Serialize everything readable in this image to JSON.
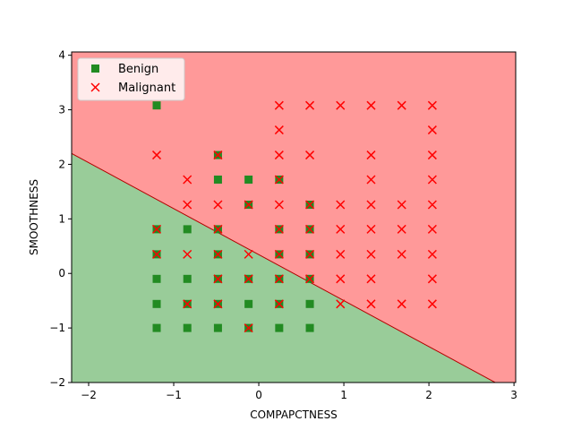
{
  "chart_data": {
    "type": "scatter",
    "xlabel": "COMPAPCTNESS",
    "ylabel": "SMOOTHNESS",
    "xlim": [
      -2.2,
      3.02
    ],
    "ylim": [
      -2,
      4.06
    ],
    "xticks": [
      -2,
      -1,
      0,
      1,
      2,
      3
    ],
    "yticks": [
      -2,
      -1,
      0,
      1,
      2,
      3,
      4
    ],
    "xtick_labels": [
      "−2",
      "−1",
      "0",
      "1",
      "2",
      "3"
    ],
    "ytick_labels": [
      "−2",
      "−1",
      "0",
      "1",
      "2",
      "3",
      "4"
    ],
    "decision_boundary": {
      "x": [
        -2.2,
        2.78
      ],
      "y": [
        2.2,
        -2.0
      ]
    },
    "regions": {
      "upper": "#ff9999",
      "lower": "#99cc99"
    },
    "boundary_color": "#b30000",
    "legend": {
      "position": "top-left",
      "entries": [
        "Benign",
        "Malignant"
      ]
    },
    "series": [
      {
        "name": "Benign",
        "marker": "square",
        "color": "#228b22",
        "points": [
          [
            -1.2,
            3.08
          ],
          [
            -1.2,
            0.81
          ],
          [
            -0.84,
            0.81
          ],
          [
            -1.2,
            0.35
          ],
          [
            -0.48,
            0.35
          ],
          [
            0.24,
            0.35
          ],
          [
            0.6,
            0.35
          ],
          [
            -1.2,
            -0.1
          ],
          [
            -0.84,
            -0.1
          ],
          [
            -0.48,
            -0.1
          ],
          [
            -0.12,
            -0.1
          ],
          [
            0.24,
            -0.1
          ],
          [
            0.6,
            -0.1
          ],
          [
            -1.2,
            -0.56
          ],
          [
            -0.84,
            -0.56
          ],
          [
            -0.48,
            -0.56
          ],
          [
            -0.12,
            -0.56
          ],
          [
            0.24,
            -0.56
          ],
          [
            0.6,
            -0.56
          ],
          [
            -1.2,
            -1.0
          ],
          [
            -0.84,
            -1.0
          ],
          [
            -0.48,
            -1.0
          ],
          [
            -0.12,
            -1.0
          ],
          [
            0.24,
            -1.0
          ],
          [
            0.6,
            -1.0
          ],
          [
            -0.48,
            2.17
          ],
          [
            -0.48,
            1.72
          ],
          [
            -0.12,
            1.72
          ],
          [
            0.24,
            1.72
          ],
          [
            -0.12,
            1.26
          ],
          [
            0.6,
            1.26
          ],
          [
            -0.48,
            0.81
          ],
          [
            0.24,
            0.81
          ],
          [
            0.6,
            0.81
          ]
        ]
      },
      {
        "name": "Malignant",
        "marker": "x",
        "color": "#ff0000",
        "points": [
          [
            0.24,
            3.08
          ],
          [
            0.6,
            3.08
          ],
          [
            0.96,
            3.08
          ],
          [
            1.32,
            3.08
          ],
          [
            1.68,
            3.08
          ],
          [
            2.04,
            3.08
          ],
          [
            0.24,
            2.63
          ],
          [
            2.04,
            2.63
          ],
          [
            -1.2,
            2.17
          ],
          [
            -0.48,
            2.17
          ],
          [
            0.24,
            2.17
          ],
          [
            0.6,
            2.17
          ],
          [
            1.32,
            2.17
          ],
          [
            2.04,
            2.17
          ],
          [
            -0.84,
            1.72
          ],
          [
            1.32,
            1.72
          ],
          [
            2.04,
            1.72
          ],
          [
            0.24,
            1.72
          ],
          [
            -0.84,
            1.26
          ],
          [
            -0.48,
            1.26
          ],
          [
            -0.12,
            1.26
          ],
          [
            0.24,
            1.26
          ],
          [
            0.6,
            1.26
          ],
          [
            0.96,
            1.26
          ],
          [
            1.32,
            1.26
          ],
          [
            1.68,
            1.26
          ],
          [
            2.04,
            1.26
          ],
          [
            -1.2,
            0.81
          ],
          [
            -0.48,
            0.81
          ],
          [
            0.24,
            0.81
          ],
          [
            0.6,
            0.81
          ],
          [
            0.96,
            0.81
          ],
          [
            1.32,
            0.81
          ],
          [
            1.68,
            0.81
          ],
          [
            2.04,
            0.81
          ],
          [
            -1.2,
            0.35
          ],
          [
            -0.84,
            0.35
          ],
          [
            -0.48,
            0.35
          ],
          [
            -0.12,
            0.35
          ],
          [
            0.24,
            0.35
          ],
          [
            0.6,
            0.35
          ],
          [
            0.96,
            0.35
          ],
          [
            1.32,
            0.35
          ],
          [
            1.68,
            0.35
          ],
          [
            2.04,
            0.35
          ],
          [
            -0.48,
            -0.1
          ],
          [
            -0.12,
            -0.1
          ],
          [
            0.24,
            -0.1
          ],
          [
            0.6,
            -0.1
          ],
          [
            0.96,
            -0.1
          ],
          [
            1.32,
            -0.1
          ],
          [
            2.04,
            -0.1
          ],
          [
            -0.84,
            -0.56
          ],
          [
            -0.48,
            -0.56
          ],
          [
            0.24,
            -0.56
          ],
          [
            0.96,
            -0.56
          ],
          [
            1.32,
            -0.56
          ],
          [
            1.68,
            -0.56
          ],
          [
            2.04,
            -0.56
          ],
          [
            -0.12,
            -1.0
          ]
        ]
      }
    ]
  }
}
